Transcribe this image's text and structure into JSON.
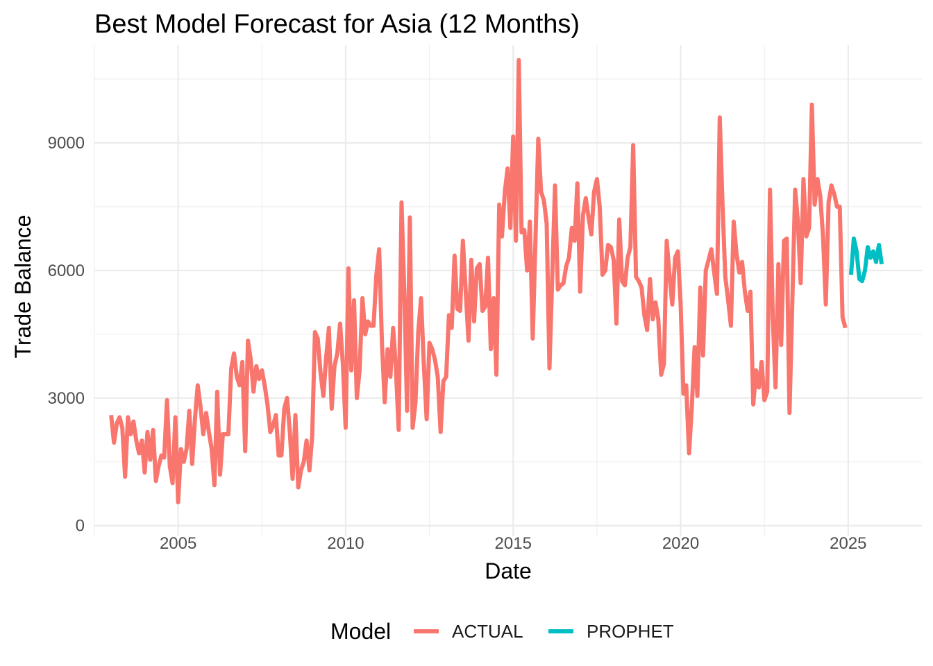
{
  "chart_data": {
    "type": "line",
    "title": "Best Model Forecast for Asia (12 Months)",
    "xlabel": "Date",
    "ylabel": "Trade Balance",
    "xlim": [
      2002.5,
      2027.2
    ],
    "ylim": [
      -250,
      11300
    ],
    "x_ticks": [
      2005,
      2010,
      2015,
      2020,
      2025
    ],
    "y_ticks": [
      0,
      3000,
      6000,
      9000
    ],
    "x_tick_labels": [
      "2005",
      "2010",
      "2015",
      "2020",
      "2025"
    ],
    "y_tick_labels": [
      "0",
      "3000",
      "6000",
      "9000"
    ],
    "grid": true,
    "legend": {
      "title": "Model",
      "position": "bottom",
      "entries": [
        "ACTUAL",
        "PROPHET"
      ]
    },
    "series": [
      {
        "name": "ACTUAL",
        "color": "#F8766D",
        "start_year": 2003.0,
        "step_years": 0.08333,
        "values": [
          2600,
          1950,
          2400,
          2550,
          2300,
          1150,
          2550,
          2150,
          2450,
          2000,
          1700,
          2000,
          1250,
          2200,
          1550,
          2250,
          1050,
          1400,
          1650,
          1600,
          2950,
          1400,
          1000,
          2550,
          550,
          1800,
          1500,
          1800,
          2700,
          1450,
          2500,
          3300,
          2800,
          2150,
          2650,
          2200,
          1800,
          950,
          3150,
          1200,
          2150,
          2150,
          2150,
          3700,
          4050,
          3500,
          3300,
          3850,
          1750,
          4350,
          3900,
          3150,
          3750,
          3450,
          3650,
          3300,
          2850,
          2200,
          2350,
          2600,
          1650,
          1650,
          2750,
          3000,
          2200,
          1100,
          2600,
          900,
          1300,
          1500,
          2000,
          1300,
          2100,
          4550,
          4400,
          3600,
          3050,
          3950,
          4650,
          2750,
          3750,
          4050,
          4750,
          3800,
          2300,
          6050,
          3650,
          5300,
          3000,
          3650,
          5350,
          4500,
          4800,
          4700,
          4700,
          5900,
          6500,
          4300,
          2900,
          4150,
          3500,
          4650,
          3700,
          2250,
          7600,
          5500,
          2700,
          7250,
          2300,
          2900,
          4550,
          5350,
          3800,
          2500,
          4300,
          4150,
          3900,
          3500,
          2200,
          3400,
          3500,
          4950,
          4650,
          6350,
          5100,
          5050,
          6700,
          5500,
          4350,
          6250,
          4800,
          6050,
          6150,
          5050,
          5150,
          6300,
          4150,
          5350,
          3550,
          7550,
          6800,
          7850,
          8400,
          7000,
          9150,
          6700,
          10950,
          6900,
          6950,
          6000,
          7150,
          4400,
          6750,
          9100,
          7850,
          7650,
          7100,
          3700,
          5850,
          8000,
          5550,
          5650,
          5700,
          6100,
          6300,
          7000,
          6700,
          8050,
          5500,
          7300,
          7700,
          7250,
          6850,
          7850,
          8150,
          7500,
          5900,
          6000,
          6600,
          6550,
          6250,
          4750,
          7200,
          5750,
          5650,
          6300,
          6550,
          8950,
          5850,
          5750,
          5600,
          4950,
          4600,
          5800,
          4850,
          5250,
          4850,
          3550,
          3800,
          6700,
          5900,
          5200,
          6300,
          6450,
          5200,
          3100,
          3300,
          1700,
          2800,
          4200,
          3050,
          5600,
          4000,
          6000,
          6250,
          6500,
          5950,
          5450,
          9600,
          7550,
          5850,
          5300,
          4700,
          7150,
          6400,
          5950,
          6200,
          5500,
          5050,
          5500,
          2850,
          3650,
          3250,
          3850,
          2950,
          3150,
          7900,
          4900,
          3250,
          6150,
          4250,
          6700,
          6750,
          2650,
          5300,
          7900,
          7150,
          5700,
          8150,
          6800,
          7000,
          9900,
          7550,
          8150,
          7750,
          6800,
          5200,
          7600,
          8000,
          7800,
          7500,
          7500,
          4900,
          4650
        ]
      },
      {
        "name": "PROPHET",
        "color": "#00BFC4",
        "start_year": 2025.08333,
        "step_years": 0.08333,
        "values": [
          5900,
          6750,
          6450,
          5800,
          5750,
          6000,
          6550,
          6300,
          6450,
          6200,
          6600,
          6150
        ]
      }
    ]
  }
}
